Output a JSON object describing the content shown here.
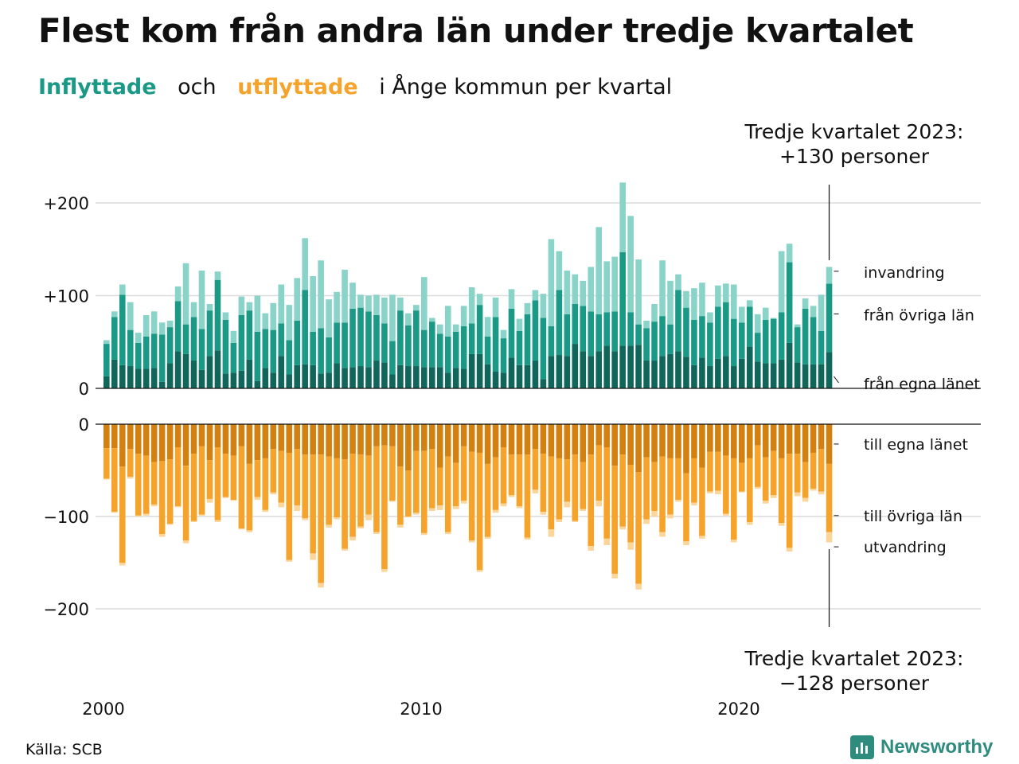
{
  "title": "Flest kom från andra län under tredje kvartalet",
  "subtitle": {
    "inflyttade": "Inflyttade",
    "och": "och",
    "utflyttade": "utflyttade",
    "rest": "i Ånge kommun per kvartal"
  },
  "note_top": [
    "Tredje kvartalet 2023:",
    "+130 personer"
  ],
  "note_bottom": [
    "Tredje kvartalet 2023:",
    "−128 personer"
  ],
  "source": "Källa: SCB",
  "logo": "Newsworthy",
  "colors": {
    "in_own": "#10665a",
    "in_other": "#1a9986",
    "in_abroad": "#8ad3c9",
    "out_own": "#d2800f",
    "out_other": "#f5a32a",
    "out_abroad": "#fbd59a"
  },
  "chart_data": {
    "type": "bar",
    "start_year": 2000,
    "x_ticks": [
      "2000",
      "2010",
      "2020"
    ],
    "top": {
      "y_ticks": [
        "+200",
        "+100",
        "0"
      ],
      "ylim": [
        0,
        220
      ],
      "labels": [
        "invandring",
        "från övriga län",
        "från egna länet"
      ],
      "own": [
        13,
        31,
        25,
        24,
        21,
        21,
        22,
        7,
        27,
        40,
        37,
        30,
        20,
        35,
        41,
        16,
        17,
        19,
        31,
        8,
        22,
        17,
        35,
        15,
        25,
        26,
        25,
        16,
        17,
        27,
        22,
        23,
        24,
        23,
        30,
        28,
        15,
        25,
        24,
        24,
        23,
        23,
        23,
        17,
        22,
        21,
        37,
        37,
        26,
        18,
        17,
        33,
        25,
        25,
        30,
        10,
        35,
        36,
        35,
        48,
        40,
        35,
        40,
        46,
        40,
        46,
        46,
        47,
        30,
        30,
        35,
        37,
        40,
        34,
        25,
        33,
        24,
        32,
        35,
        24,
        32,
        45,
        29,
        27,
        27,
        31,
        49,
        28,
        26,
        26,
        26,
        39
      ],
      "other": [
        35,
        46,
        76,
        39,
        28,
        35,
        37,
        51,
        39,
        54,
        32,
        47,
        44,
        49,
        76,
        58,
        32,
        60,
        53,
        53,
        42,
        46,
        35,
        37,
        48,
        80,
        36,
        49,
        38,
        44,
        49,
        63,
        63,
        60,
        49,
        42,
        36,
        59,
        44,
        60,
        40,
        49,
        36,
        39,
        39,
        46,
        33,
        53,
        30,
        59,
        37,
        53,
        37,
        55,
        65,
        66,
        32,
        70,
        45,
        43,
        49,
        48,
        40,
        36,
        43,
        101,
        36,
        22,
        35,
        42,
        43,
        32,
        66,
        53,
        49,
        45,
        47,
        56,
        58,
        51,
        39,
        43,
        31,
        47,
        48,
        51,
        87,
        38,
        60,
        51,
        36,
        74
      ],
      "abroad": [
        4,
        6,
        11,
        30,
        11,
        23,
        24,
        13,
        7,
        16,
        66,
        16,
        63,
        7,
        9,
        8,
        13,
        20,
        9,
        39,
        17,
        29,
        42,
        38,
        46,
        56,
        60,
        73,
        41,
        33,
        57,
        28,
        14,
        17,
        22,
        28,
        50,
        14,
        13,
        6,
        57,
        4,
        10,
        33,
        8,
        22,
        39,
        12,
        21,
        21,
        9,
        21,
        13,
        12,
        11,
        26,
        94,
        42,
        47,
        32,
        27,
        48,
        94,
        55,
        59,
        75,
        104,
        70,
        8,
        19,
        60,
        47,
        17,
        18,
        34,
        36,
        11,
        23,
        20,
        37,
        17,
        7,
        20,
        13,
        1,
        66,
        20,
        3,
        11,
        12,
        39,
        18
      ]
    },
    "bottom": {
      "y_ticks": [
        "0",
        "−100",
        "−200"
      ],
      "ylim": [
        -200,
        0
      ],
      "labels": [
        "till egna länet",
        "till övriga län",
        "utvandring"
      ],
      "own": [
        26,
        26,
        46,
        27,
        32,
        34,
        41,
        40,
        38,
        25,
        45,
        32,
        24,
        39,
        25,
        32,
        34,
        24,
        43,
        39,
        37,
        27,
        29,
        31,
        27,
        33,
        33,
        33,
        35,
        37,
        38,
        32,
        33,
        34,
        24,
        23,
        24,
        46,
        50,
        29,
        29,
        27,
        47,
        35,
        42,
        24,
        30,
        31,
        43,
        36,
        25,
        33,
        33,
        33,
        27,
        32,
        35,
        37,
        38,
        33,
        41,
        33,
        23,
        25,
        45,
        33,
        44,
        52,
        36,
        41,
        35,
        37,
        37,
        53,
        37,
        47,
        30,
        30,
        34,
        37,
        42,
        37,
        23,
        36,
        29,
        37,
        32,
        32,
        41,
        31,
        27,
        43
      ],
      "other": [
        33,
        69,
        104,
        30,
        67,
        63,
        46,
        79,
        70,
        64,
        81,
        73,
        74,
        42,
        79,
        47,
        48,
        89,
        72,
        40,
        56,
        47,
        56,
        116,
        61,
        69,
        107,
        139,
        74,
        64,
        97,
        90,
        78,
        64,
        93,
        134,
        59,
        63,
        50,
        67,
        89,
        64,
        41,
        82,
        47,
        59,
        96,
        127,
        79,
        57,
        61,
        44,
        56,
        90,
        44,
        63,
        79,
        66,
        46,
        72,
        51,
        99,
        60,
        99,
        117,
        78,
        84,
        121,
        67,
        53,
        82,
        61,
        45,
        74,
        48,
        74,
        43,
        42,
        63,
        88,
        31,
        69,
        45,
        47,
        48,
        70,
        102,
        42,
        39,
        39,
        46,
        74
      ],
      "abroad": [
        1,
        1,
        3,
        2,
        1,
        2,
        2,
        3,
        1,
        1,
        3,
        1,
        1,
        4,
        2,
        1,
        1,
        1,
        2,
        3,
        2,
        2,
        5,
        2,
        6,
        2,
        7,
        5,
        3,
        2,
        2,
        4,
        2,
        6,
        2,
        3,
        1,
        3,
        1,
        2,
        2,
        3,
        5,
        2,
        3,
        3,
        2,
        2,
        2,
        3,
        3,
        2,
        2,
        2,
        4,
        3,
        8,
        3,
        6,
        1,
        2,
        5,
        6,
        7,
        5,
        3,
        8,
        6,
        5,
        6,
        5,
        4,
        2,
        4,
        3,
        3,
        2,
        4,
        2,
        3,
        1,
        3,
        2,
        3,
        3,
        3,
        4,
        4,
        4,
        2,
        3,
        11
      ]
    }
  }
}
